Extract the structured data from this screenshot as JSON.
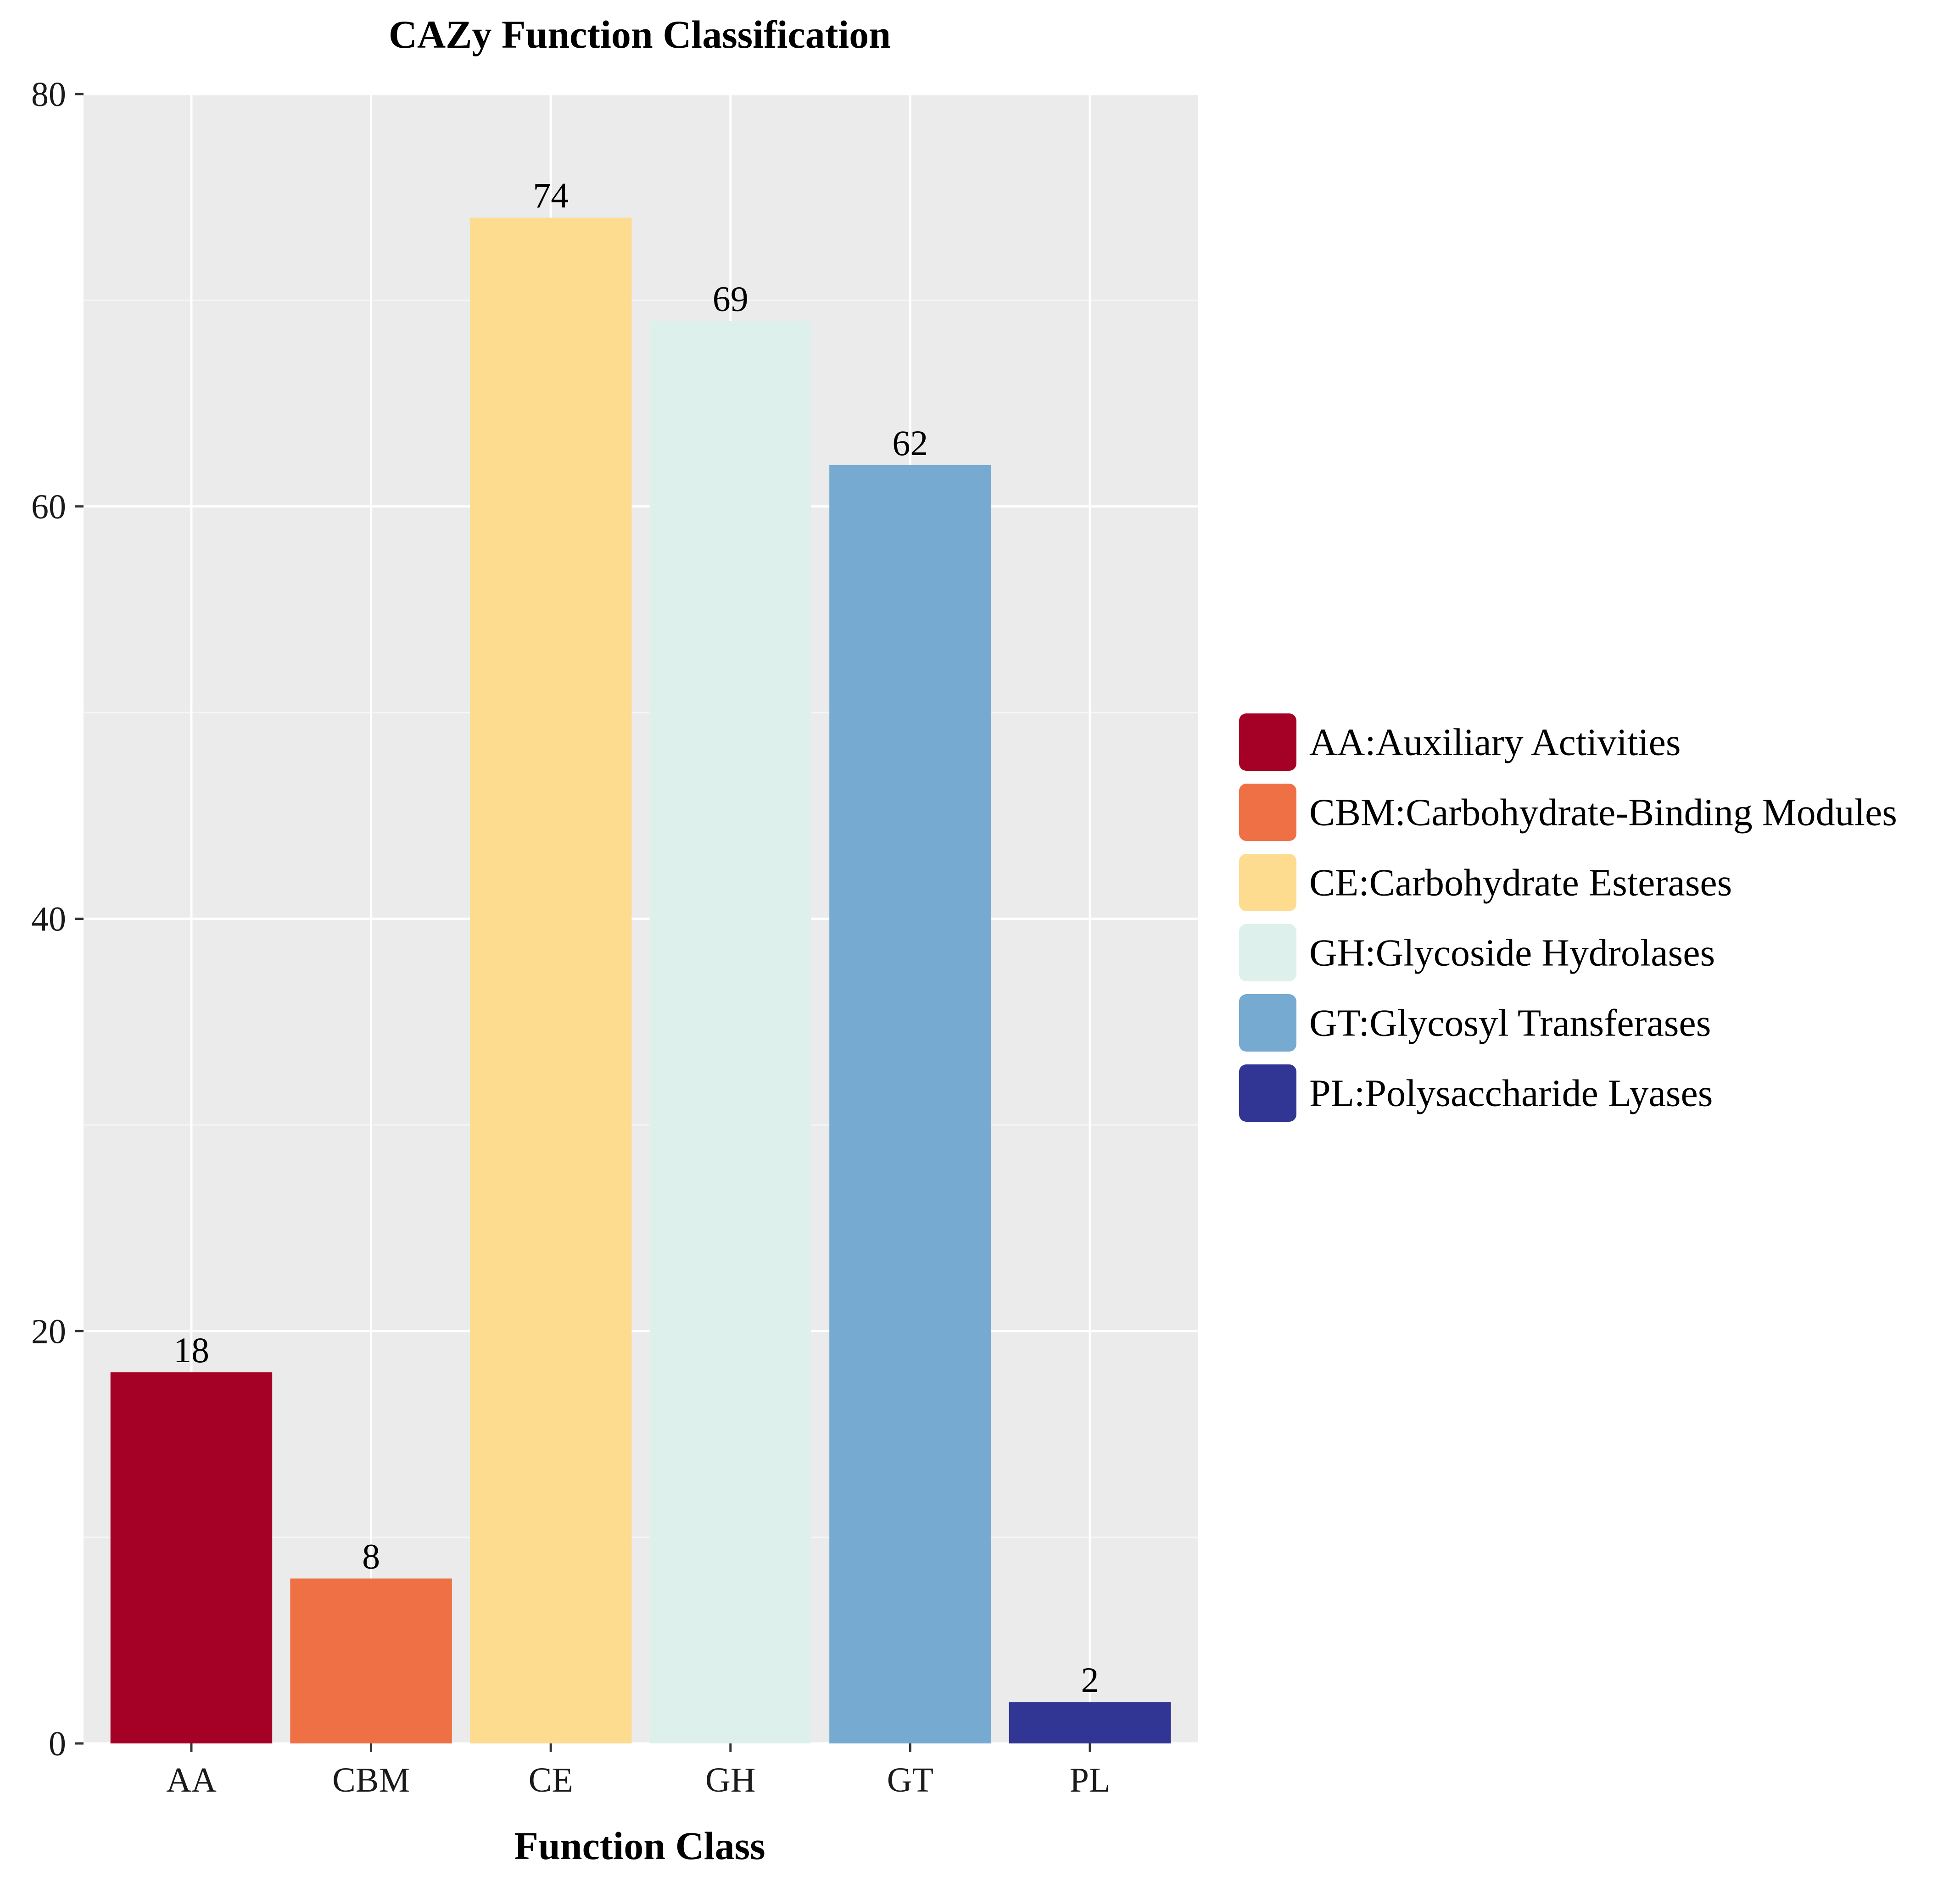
{
  "chart_data": {
    "type": "bar",
    "title": "CAZy Function Classification",
    "xlabel": "Function Class",
    "ylabel": "",
    "ylim": [
      0,
      80
    ],
    "yticks": [
      0,
      20,
      40,
      60,
      80
    ],
    "grid": true,
    "legend_position": "right",
    "categories": [
      "AA",
      "CBM",
      "CE",
      "GH",
      "GT",
      "PL"
    ],
    "values": [
      18,
      8,
      74,
      69,
      62,
      2
    ],
    "data_labels": [
      "18",
      "8",
      "74",
      "69",
      "62",
      "2"
    ],
    "colors": [
      "#A50026",
      "#F07046",
      "#FDDC90",
      "#DDF0EC",
      "#76AAD0",
      "#313695"
    ],
    "legend": [
      "AA:Auxiliary Activities",
      "CBM:Carbohydrate-Binding Modules",
      "CE:Carbohydrate Esterases",
      "GH:Glycoside Hydrolases",
      "GT:Glycosyl Transferases",
      "PL:Polysaccharide Lyases"
    ]
  }
}
